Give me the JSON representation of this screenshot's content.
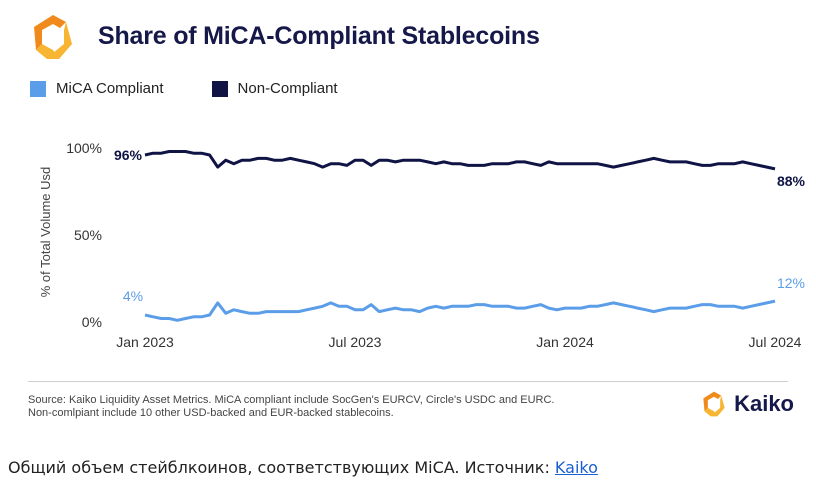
{
  "header": {
    "title": "Share of MiCA-Compliant Stablecoins",
    "logo_icon": "kaiko-logo-icon"
  },
  "colors": {
    "compliant": "#5b9de8",
    "non_compliant": "#0f1445",
    "accent": "#f08a1c",
    "accent2": "#f7b531"
  },
  "chart_data": {
    "type": "line",
    "title": "Share of MiCA-Compliant Stablecoins",
    "ylabel": "% of Total Volume Usd",
    "xlabel": "",
    "ylim": [
      0,
      100
    ],
    "yticks": [
      "100%",
      "50%",
      "0%"
    ],
    "yticks_values": [
      100,
      50,
      0
    ],
    "xticks": [
      "Jan 2023",
      "Jul 2023",
      "Jan 2024",
      "Jul 2024"
    ],
    "xticks_index": [
      0,
      26,
      52,
      78
    ],
    "legend_position": "top-left",
    "grid": false,
    "annotations": [
      {
        "series": "MiCA Compliant",
        "text": "4%",
        "position": "start"
      },
      {
        "series": "Non-Compliant",
        "text": "96%",
        "position": "start"
      },
      {
        "series": "MiCA Compliant",
        "text": "12%",
        "position": "end"
      },
      {
        "series": "Non-Compliant",
        "text": "88%",
        "position": "end"
      }
    ],
    "series": [
      {
        "name": "MiCA Compliant",
        "values": [
          4,
          3,
          2,
          2,
          1,
          2,
          3,
          3,
          4,
          11,
          5,
          7,
          6,
          5,
          5,
          6,
          6,
          6,
          6,
          6,
          7,
          8,
          9,
          11,
          9,
          9,
          7,
          7,
          10,
          6,
          7,
          8,
          7,
          7,
          6,
          8,
          9,
          8,
          9,
          9,
          9,
          10,
          10,
          9,
          9,
          9,
          8,
          8,
          9,
          10,
          8,
          7,
          8,
          8,
          8,
          9,
          9,
          10,
          11,
          10,
          9,
          8,
          7,
          6,
          7,
          8,
          8,
          8,
          9,
          10,
          10,
          9,
          9,
          9,
          8,
          9,
          10,
          11,
          12
        ]
      },
      {
        "name": "Non-Compliant",
        "values": [
          96,
          97,
          97,
          98,
          98,
          98,
          97,
          97,
          96,
          89,
          93,
          91,
          93,
          93,
          94,
          94,
          93,
          93,
          94,
          93,
          92,
          91,
          89,
          91,
          91,
          90,
          93,
          93,
          90,
          93,
          93,
          92,
          93,
          93,
          93,
          92,
          91,
          92,
          91,
          91,
          90,
          90,
          90,
          91,
          91,
          91,
          92,
          92,
          91,
          90,
          92,
          91,
          91,
          91,
          91,
          91,
          91,
          90,
          89,
          90,
          91,
          92,
          93,
          94,
          93,
          92,
          92,
          92,
          91,
          90,
          90,
          91,
          91,
          91,
          92,
          91,
          90,
          89,
          88
        ]
      }
    ]
  },
  "footer": {
    "source_line1": "Source: Kaiko Liquidity Asset Metrics. MiCA compliant include SocGen's EURCV, Circle's USDC and EURC.",
    "source_line2": "Non-comlpiant include 10 other USD-backed and EUR-backed stablecoins.",
    "brand_name": "Kaiko"
  },
  "caption": {
    "text": "Общий объем стейблкоинов, соответствующих MiCA. Источник: ",
    "link_text": "Kaiko"
  }
}
